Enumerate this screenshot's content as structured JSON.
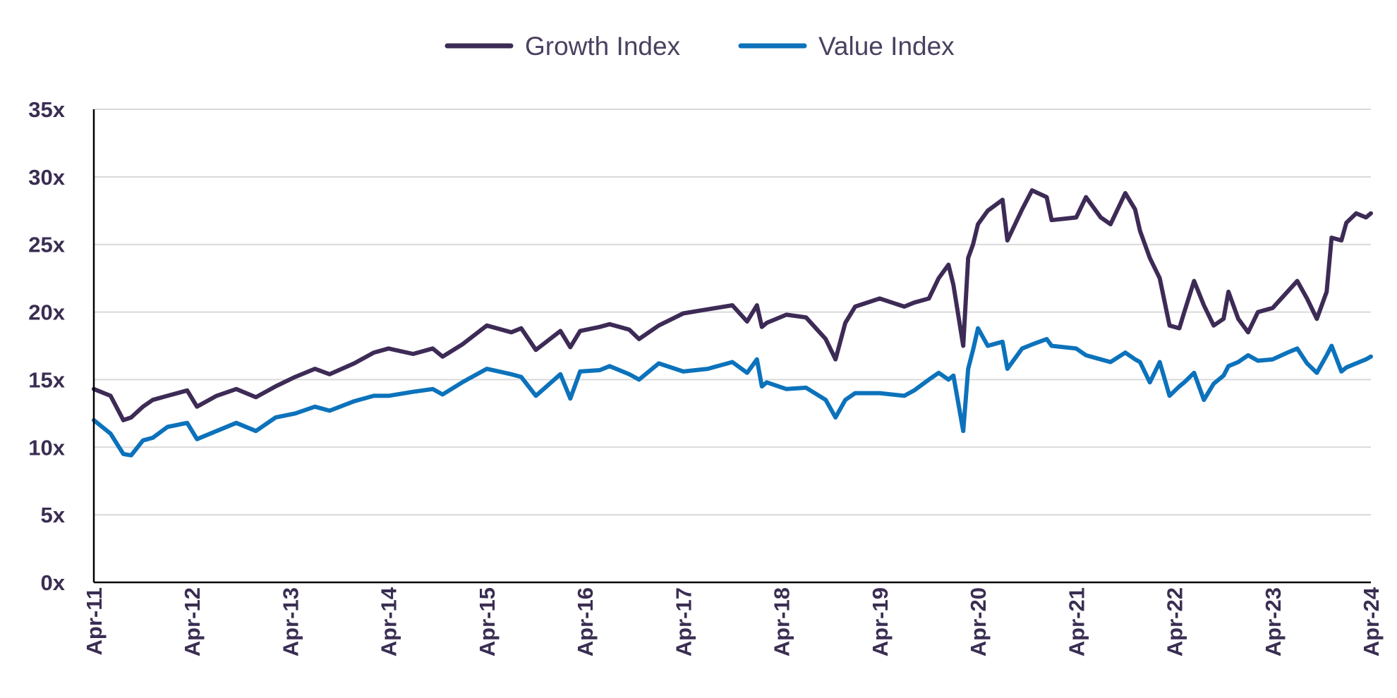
{
  "chart_data": {
    "type": "line",
    "title": "",
    "xlabel": "",
    "ylabel": "",
    "ylim": [
      0,
      35
    ],
    "y_ticks": [
      0,
      5,
      10,
      15,
      20,
      25,
      30,
      35
    ],
    "y_tick_labels": [
      "0x",
      "5x",
      "10x",
      "15x",
      "20x",
      "25x",
      "30x",
      "35x"
    ],
    "x_range": [
      2011.25,
      2024.25
    ],
    "x_ticks": [
      2011.25,
      2012.25,
      2013.25,
      2014.25,
      2015.25,
      2016.25,
      2017.25,
      2018.25,
      2019.25,
      2020.25,
      2021.25,
      2022.25,
      2023.25,
      2024.25
    ],
    "x_tick_labels": [
      "Apr-11",
      "Apr-12",
      "Apr-13",
      "Apr-14",
      "Apr-15",
      "Apr-16",
      "Apr-17",
      "Apr-18",
      "Apr-19",
      "Apr-20",
      "Apr-21",
      "Apr-22",
      "Apr-23",
      "Apr-24"
    ],
    "grid": true,
    "legend_position": "top-center",
    "series": [
      {
        "name": "Growth Index",
        "color": "#3d2b56",
        "x": [
          2011.25,
          2011.42,
          2011.55,
          2011.63,
          2011.75,
          2011.85,
          2012.0,
          2012.2,
          2012.3,
          2012.5,
          2012.7,
          2012.9,
          2013.1,
          2013.3,
          2013.5,
          2013.65,
          2013.9,
          2014.1,
          2014.25,
          2014.5,
          2014.7,
          2014.8,
          2015.0,
          2015.25,
          2015.5,
          2015.6,
          2015.75,
          2016.0,
          2016.1,
          2016.2,
          2016.4,
          2016.5,
          2016.7,
          2016.8,
          2017.0,
          2017.25,
          2017.5,
          2017.75,
          2017.9,
          2018.0,
          2018.05,
          2018.1,
          2018.3,
          2018.5,
          2018.7,
          2018.8,
          2018.9,
          2019.0,
          2019.25,
          2019.5,
          2019.6,
          2019.75,
          2019.85,
          2019.95,
          2020.0,
          2020.1,
          2020.15,
          2020.2,
          2020.25,
          2020.35,
          2020.5,
          2020.55,
          2020.7,
          2020.8,
          2020.95,
          2021.0,
          2021.25,
          2021.35,
          2021.5,
          2021.6,
          2021.75,
          2021.85,
          2021.9,
          2022.0,
          2022.1,
          2022.2,
          2022.3,
          2022.35,
          2022.45,
          2022.55,
          2022.65,
          2022.75,
          2022.8,
          2022.9,
          2023.0,
          2023.1,
          2023.25,
          2023.4,
          2023.5,
          2023.6,
          2023.7,
          2023.8,
          2023.85,
          2023.95,
          2024.0,
          2024.1,
          2024.2,
          2024.25
        ],
        "values": [
          14.3,
          13.8,
          12.0,
          12.2,
          13.0,
          13.5,
          13.8,
          14.2,
          13.0,
          13.8,
          14.3,
          13.7,
          14.5,
          15.2,
          15.8,
          15.4,
          16.2,
          17.0,
          17.3,
          16.9,
          17.3,
          16.7,
          17.6,
          19.0,
          18.5,
          18.8,
          17.2,
          18.6,
          17.4,
          18.6,
          18.9,
          19.1,
          18.7,
          18.0,
          19.0,
          19.9,
          20.2,
          20.5,
          19.3,
          20.5,
          18.9,
          19.2,
          19.8,
          19.6,
          18.0,
          16.5,
          19.2,
          20.4,
          21.0,
          20.4,
          20.7,
          21.0,
          22.5,
          23.5,
          22.0,
          17.5,
          24.0,
          25.0,
          26.5,
          27.5,
          28.3,
          25.3,
          27.6,
          29.0,
          28.5,
          26.8,
          27.0,
          28.5,
          27.0,
          26.5,
          28.8,
          27.6,
          26.0,
          24.0,
          22.5,
          19.0,
          18.8,
          20.0,
          22.3,
          20.5,
          19.0,
          19.5,
          21.5,
          19.5,
          18.5,
          20.0,
          20.3,
          21.5,
          22.3,
          21.0,
          19.5,
          21.5,
          25.5,
          25.3,
          26.6,
          27.3,
          27.0,
          27.3
        ]
      },
      {
        "name": "Value Index",
        "color": "#0c72bb",
        "x": [
          2011.25,
          2011.42,
          2011.55,
          2011.63,
          2011.75,
          2011.85,
          2012.0,
          2012.2,
          2012.3,
          2012.5,
          2012.7,
          2012.9,
          2013.1,
          2013.3,
          2013.5,
          2013.65,
          2013.9,
          2014.1,
          2014.25,
          2014.5,
          2014.7,
          2014.8,
          2015.0,
          2015.25,
          2015.5,
          2015.6,
          2015.75,
          2016.0,
          2016.1,
          2016.2,
          2016.4,
          2016.5,
          2016.7,
          2016.8,
          2017.0,
          2017.25,
          2017.5,
          2017.75,
          2017.9,
          2018.0,
          2018.05,
          2018.1,
          2018.3,
          2018.5,
          2018.7,
          2018.8,
          2018.9,
          2019.0,
          2019.25,
          2019.5,
          2019.6,
          2019.75,
          2019.85,
          2019.95,
          2020.0,
          2020.1,
          2020.15,
          2020.2,
          2020.25,
          2020.35,
          2020.5,
          2020.55,
          2020.7,
          2020.8,
          2020.95,
          2021.0,
          2021.25,
          2021.35,
          2021.5,
          2021.6,
          2021.75,
          2021.85,
          2021.9,
          2022.0,
          2022.1,
          2022.2,
          2022.3,
          2022.35,
          2022.45,
          2022.55,
          2022.65,
          2022.75,
          2022.8,
          2022.9,
          2023.0,
          2023.1,
          2023.25,
          2023.4,
          2023.5,
          2023.6,
          2023.7,
          2023.8,
          2023.85,
          2023.95,
          2024.0,
          2024.1,
          2024.2,
          2024.25
        ],
        "values": [
          12.0,
          11.0,
          9.5,
          9.4,
          10.5,
          10.7,
          11.5,
          11.8,
          10.6,
          11.2,
          11.8,
          11.2,
          12.2,
          12.5,
          13.0,
          12.7,
          13.4,
          13.8,
          13.8,
          14.1,
          14.3,
          13.9,
          14.8,
          15.8,
          15.4,
          15.2,
          13.8,
          15.4,
          13.6,
          15.6,
          15.7,
          16.0,
          15.4,
          15.0,
          16.2,
          15.6,
          15.8,
          16.3,
          15.5,
          16.5,
          14.5,
          14.8,
          14.3,
          14.4,
          13.5,
          12.2,
          13.5,
          14.0,
          14.0,
          13.8,
          14.2,
          15.0,
          15.5,
          15.0,
          15.3,
          11.2,
          15.8,
          17.2,
          18.8,
          17.5,
          17.8,
          15.8,
          17.3,
          17.6,
          18.0,
          17.5,
          17.3,
          16.8,
          16.5,
          16.3,
          17.0,
          16.5,
          16.3,
          14.8,
          16.3,
          13.8,
          14.5,
          14.8,
          15.5,
          13.5,
          14.7,
          15.3,
          16.0,
          16.3,
          16.8,
          16.4,
          16.5,
          17.0,
          17.3,
          16.2,
          15.5,
          16.8,
          17.5,
          15.6,
          15.9,
          16.2,
          16.5,
          16.7
        ]
      }
    ]
  }
}
